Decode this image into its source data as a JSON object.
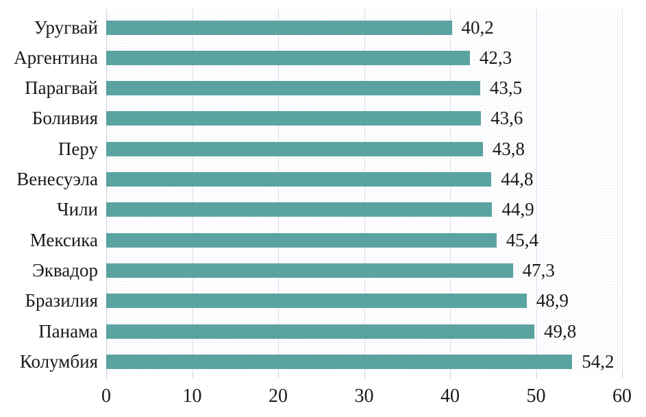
{
  "chart_data": {
    "type": "bar",
    "orientation": "horizontal",
    "title": "",
    "xlabel": "",
    "ylabel": "",
    "categories": [
      "Уругвай",
      "Аргентина",
      "Парагвай",
      "Боливия",
      "Перу",
      "Венесуэла",
      "Чили",
      "Мексика",
      "Эквадор",
      "Бразилия",
      "Панама",
      "Колумбия"
    ],
    "values": [
      40.2,
      42.3,
      43.5,
      43.6,
      43.8,
      44.8,
      44.9,
      45.4,
      47.3,
      48.9,
      49.8,
      54.2
    ],
    "value_labels": [
      "40,2",
      "42,3",
      "43,5",
      "43,6",
      "43,8",
      "44,8",
      "44,9",
      "45,4",
      "47,3",
      "48,9",
      "49,8",
      "54,2"
    ],
    "xlim": [
      0,
      60
    ],
    "x_ticks": [
      0,
      10,
      20,
      30,
      40,
      50,
      60
    ],
    "grid": true,
    "legend": false,
    "colors": {
      "bar": "#5ba3a0",
      "gridline": "#dcdee9",
      "axis_line": "#cdd1de",
      "tick_mark": "#c6cbd8",
      "text": "#1a1a1a",
      "background": "#ffffff"
    }
  }
}
